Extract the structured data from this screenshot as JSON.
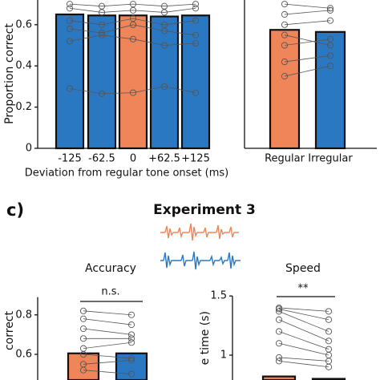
{
  "label": "c)",
  "title": "Experiment 3",
  "chart_data": [
    {
      "type": "bar",
      "ylabel": "Proportion correct",
      "xlabel": "Deviation from regular tone onset (ms)",
      "categories": [
        "-125",
        "-62.5",
        "0",
        "+62.5",
        "+125"
      ],
      "values": [
        0.65,
        0.645,
        0.645,
        0.64,
        0.645
      ],
      "colors": [
        "#2b78c2",
        "#2b78c2",
        "#f0855a",
        "#2b78c2",
        "#2b78c2"
      ],
      "ylim": [
        0,
        0.72
      ],
      "yticks": [
        0,
        0.2,
        0.4,
        0.6
      ],
      "subjects": [
        [
          0.7,
          0.69,
          0.7,
          0.69,
          0.7
        ],
        [
          0.68,
          0.66,
          0.67,
          0.66,
          0.68
        ],
        [
          0.62,
          0.6,
          0.63,
          0.6,
          0.62
        ],
        [
          0.58,
          0.56,
          0.6,
          0.57,
          0.55
        ],
        [
          0.52,
          0.55,
          0.53,
          0.5,
          0.51
        ],
        [
          0.29,
          0.265,
          0.27,
          0.3,
          0.27
        ]
      ]
    },
    {
      "type": "bar",
      "categories": [
        "Regular",
        "Irregular"
      ],
      "values": [
        0.575,
        0.565
      ],
      "colors": [
        "#f0855a",
        "#2b78c2"
      ],
      "ylim": [
        0,
        0.72
      ],
      "subjects": [
        [
          0.7,
          0.68
        ],
        [
          0.65,
          0.67
        ],
        [
          0.6,
          0.62
        ],
        [
          0.55,
          0.5
        ],
        [
          0.5,
          0.53
        ],
        [
          0.42,
          0.45
        ],
        [
          0.35,
          0.4
        ]
      ]
    },
    {
      "type": "bar",
      "title": "Accuracy",
      "annotation": "n.s.",
      "ylabel": "correct",
      "values": [
        0.605,
        0.605
      ],
      "colors": [
        "#f0855a",
        "#2b78c2"
      ],
      "ylim": [
        0.47,
        0.89
      ],
      "yticks": [
        0.6,
        0.8
      ],
      "subjects": [
        [
          0.82,
          0.8
        ],
        [
          0.78,
          0.75
        ],
        [
          0.73,
          0.7
        ],
        [
          0.68,
          0.68
        ],
        [
          0.63,
          0.66
        ],
        [
          0.6,
          0.58
        ],
        [
          0.55,
          0.57
        ],
        [
          0.52,
          0.5
        ]
      ]
    },
    {
      "type": "bar",
      "title": "Speed",
      "annotation": "**",
      "ylabel": "e time (s)",
      "values": [
        0.82,
        0.8
      ],
      "colors": [
        "#f0855a",
        "#2b78c2"
      ],
      "ylim": [
        0.79,
        1.5
      ],
      "yticks": [
        1,
        1.5
      ],
      "subjects": [
        [
          1.4,
          1.37
        ],
        [
          1.39,
          1.3
        ],
        [
          1.37,
          1.2
        ],
        [
          1.3,
          1.12
        ],
        [
          1.2,
          1.05
        ],
        [
          1.1,
          1.0
        ],
        [
          0.98,
          0.95
        ],
        [
          0.95,
          0.9
        ]
      ]
    }
  ]
}
